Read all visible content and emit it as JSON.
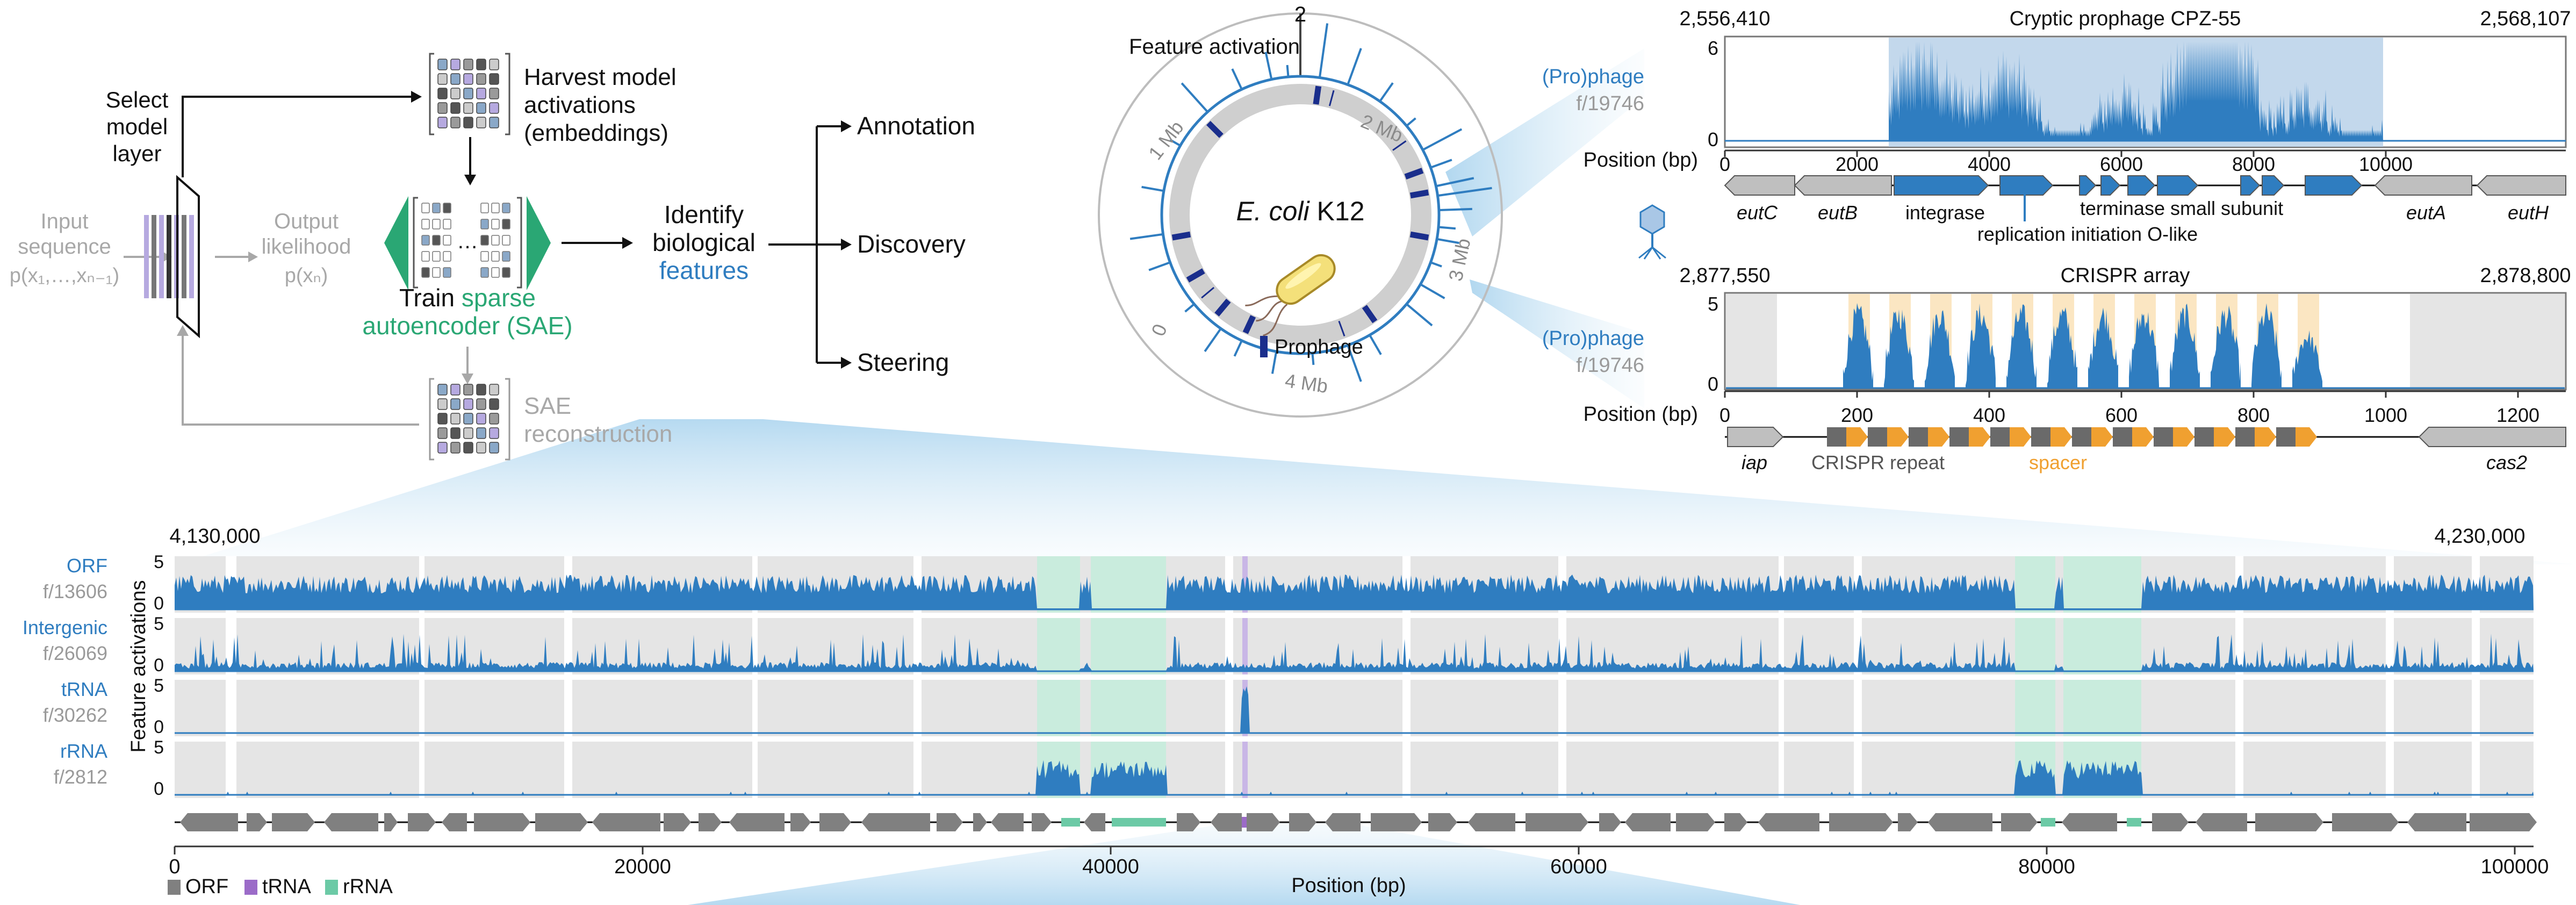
{
  "workflow": {
    "input_label": "Input",
    "input_label2": "sequence",
    "input_formula": "p(x₁,…,xₙ₋₁)",
    "output_label": "Output",
    "output_label2": "likelihood",
    "output_formula": "p(xₙ)",
    "select_layer": [
      "Select",
      "model",
      "layer"
    ],
    "harvest": [
      "Harvest model",
      "activations",
      "(embeddings)"
    ],
    "train_prefix": "Train ",
    "train_sparse": "sparse",
    "train_line2": "autoencoder (SAE)",
    "sae_recon": [
      "SAE",
      "reconstruction"
    ],
    "identify": [
      "Identify",
      "biological"
    ],
    "features_word": "features",
    "outputs": [
      "Annotation",
      "Discovery",
      "Steering"
    ],
    "colors": {
      "green": "#2aa774",
      "blue": "#2f7dc0",
      "gray": "#9a9a9a",
      "lavender": "#b6a9e0",
      "dark": "#555555"
    }
  },
  "genome_map": {
    "axis_top": "2",
    "axis_label": "Feature activation",
    "center_title_italic": "E. coli",
    "center_title_rest": " K12",
    "legend_prophage": "Prophage",
    "mb_labels": [
      "1 Mb",
      "2 Mb",
      "3 Mb",
      "4 Mb",
      "0"
    ],
    "bacterium_icon": "bacterium-icon",
    "colors": {
      "ring": "#cfcfcf",
      "prophage": "#1a2e8c",
      "activation": "#2f7dc0"
    }
  },
  "prophage_panel": {
    "title": "Cryptic prophage CPZ-55",
    "left_coord": "2,556,410",
    "right_coord": "2,568,107",
    "feature_name": "(Pro)phage",
    "feature_id": "f/19746",
    "position_label": "Position (bp)",
    "y_ticks": [
      "6",
      "0"
    ],
    "x_ticks": [
      "0",
      "2000",
      "4000",
      "6000",
      "8000",
      "10000"
    ],
    "genes": [
      "eutC",
      "eutB",
      "integrase",
      "terminase small subunit",
      "replication initiation O-like",
      "eutA",
      "eutH"
    ],
    "phage_icon": "phage-icon"
  },
  "crispr_panel": {
    "title": "CRISPR array",
    "left_coord": "2,877,550",
    "right_coord": "2,878,800",
    "feature_name": "(Pro)phage",
    "feature_id": "f/19746",
    "position_label": "Position (bp)",
    "y_ticks": [
      "5",
      "0"
    ],
    "x_ticks": [
      "0",
      "200",
      "400",
      "600",
      "800",
      "1000",
      "1200"
    ],
    "genes": [
      "iap",
      "cas2"
    ],
    "repeat_label": "CRISPR repeat",
    "spacer_label": "spacer",
    "colors": {
      "spacer": "#f0a030",
      "repeat": "#6a6a6a",
      "highlight": "#fbe6c2"
    }
  },
  "bottom_panel": {
    "left_coord": "4,130,000",
    "right_coord": "4,230,000",
    "y_axis_label": "Feature activations",
    "tracks": [
      {
        "name": "ORF",
        "id": "f/13606",
        "ticks": [
          "5",
          "0"
        ]
      },
      {
        "name": "Intergenic",
        "id": "f/26069",
        "ticks": [
          "5",
          "0"
        ]
      },
      {
        "name": "tRNA",
        "id": "f/30262",
        "ticks": [
          "5",
          "0"
        ]
      },
      {
        "name": "rRNA",
        "id": "f/2812",
        "ticks": [
          "5",
          "0"
        ]
      }
    ],
    "x_ticks": [
      "0",
      "20000",
      "40000",
      "60000",
      "80000",
      "100000"
    ],
    "x_label": "Position (bp)",
    "legend": [
      "ORF",
      "tRNA",
      "rRNA"
    ],
    "colors": {
      "orf": "#808080",
      "trna": "#9b6bc8",
      "rrna": "#6ccaa6",
      "signal": "#2f7dc0",
      "band": "#e5e5e5"
    }
  }
}
